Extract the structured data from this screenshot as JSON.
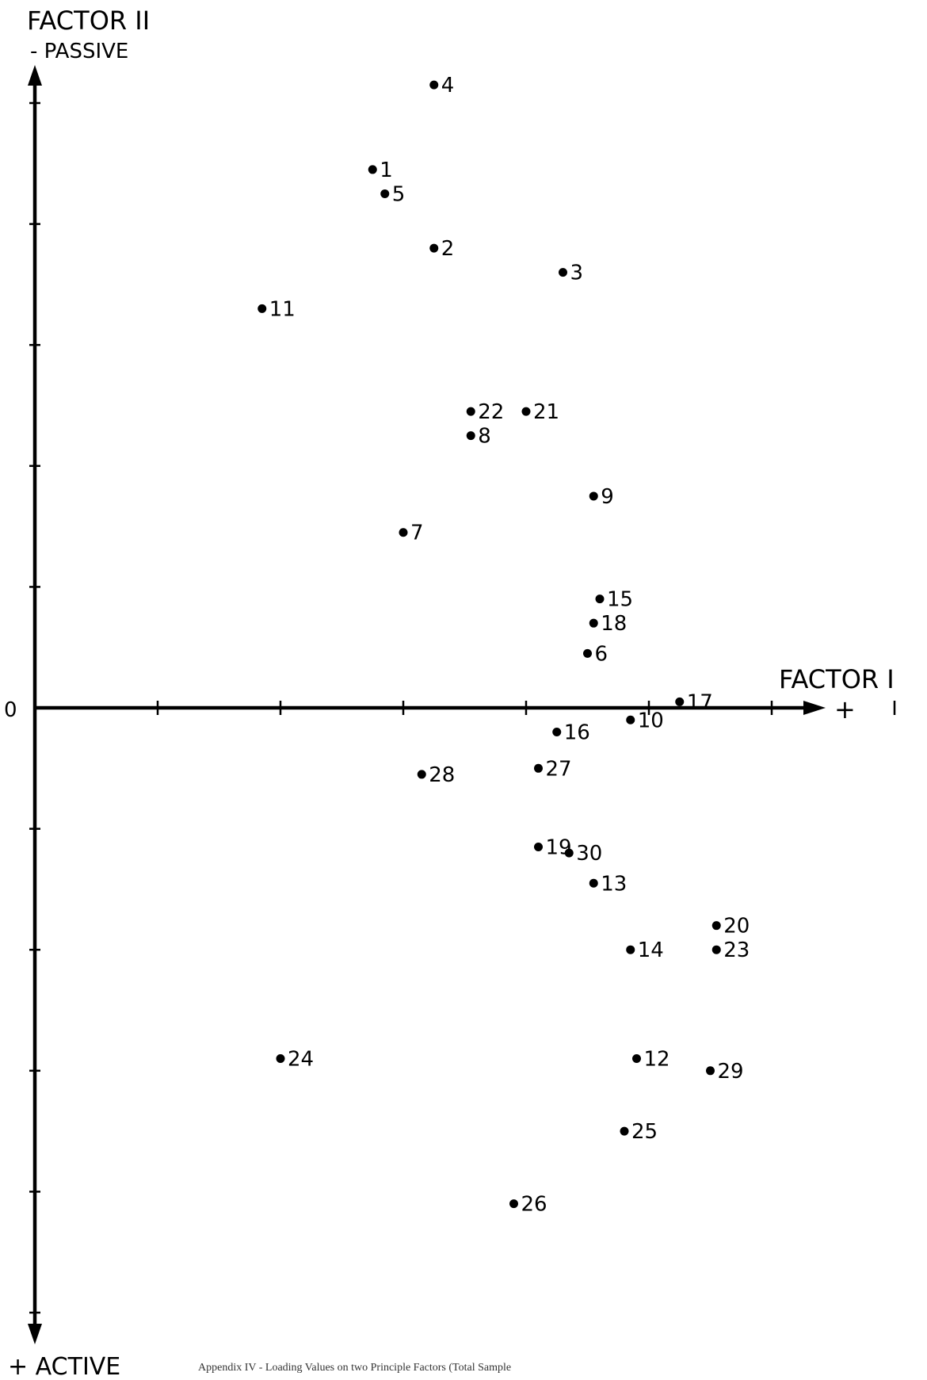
{
  "chart_data": {
    "type": "scatter",
    "title": "",
    "xlabel": "FACTOR I",
    "xlabel_sign": "+",
    "ylabel": "FACTOR II",
    "ylabel_top": "- PASSIVE",
    "ylabel_bottom": "+ ACTIVE",
    "origin_label": "0",
    "xlim": [
      0,
      1.45
    ],
    "ylim": [
      1.0,
      -1.05
    ],
    "x_tick_step": 0.2,
    "y_tick_step": 0.2,
    "grid": false,
    "y_axis_inverted": true,
    "points": [
      {
        "label": "1",
        "x": 0.55,
        "y": -0.89
      },
      {
        "label": "2",
        "x": 0.65,
        "y": -0.76
      },
      {
        "label": "3",
        "x": 0.86,
        "y": -0.72
      },
      {
        "label": "4",
        "x": 0.65,
        "y": -1.03
      },
      {
        "label": "5",
        "x": 0.57,
        "y": -0.85
      },
      {
        "label": "6",
        "x": 0.9,
        "y": -0.09
      },
      {
        "label": "7",
        "x": 0.6,
        "y": -0.29
      },
      {
        "label": "8",
        "x": 0.71,
        "y": -0.45
      },
      {
        "label": "9",
        "x": 0.91,
        "y": -0.35
      },
      {
        "label": "10",
        "x": 0.97,
        "y": 0.02
      },
      {
        "label": "11",
        "x": 0.37,
        "y": -0.66
      },
      {
        "label": "12",
        "x": 0.98,
        "y": 0.58
      },
      {
        "label": "13",
        "x": 0.91,
        "y": 0.29
      },
      {
        "label": "14",
        "x": 0.97,
        "y": 0.4
      },
      {
        "label": "15",
        "x": 0.92,
        "y": -0.18
      },
      {
        "label": "16",
        "x": 0.85,
        "y": 0.04
      },
      {
        "label": "17",
        "x": 1.05,
        "y": -0.01
      },
      {
        "label": "18",
        "x": 0.91,
        "y": -0.14
      },
      {
        "label": "19",
        "x": 0.82,
        "y": 0.23
      },
      {
        "label": "20",
        "x": 1.11,
        "y": 0.36
      },
      {
        "label": "21",
        "x": 0.8,
        "y": -0.49
      },
      {
        "label": "22",
        "x": 0.71,
        "y": -0.49
      },
      {
        "label": "23",
        "x": 1.11,
        "y": 0.4
      },
      {
        "label": "24",
        "x": 0.4,
        "y": 0.58
      },
      {
        "label": "25",
        "x": 0.96,
        "y": 0.7
      },
      {
        "label": "26",
        "x": 0.78,
        "y": 0.82
      },
      {
        "label": "27",
        "x": 0.82,
        "y": 0.1
      },
      {
        "label": "28",
        "x": 0.63,
        "y": 0.11
      },
      {
        "label": "29",
        "x": 1.1,
        "y": 0.6
      },
      {
        "label": "30",
        "x": 0.87,
        "y": 0.24
      }
    ]
  },
  "caption": "Appendix IV - Loading Values on two Principle Factors (Total Sample"
}
